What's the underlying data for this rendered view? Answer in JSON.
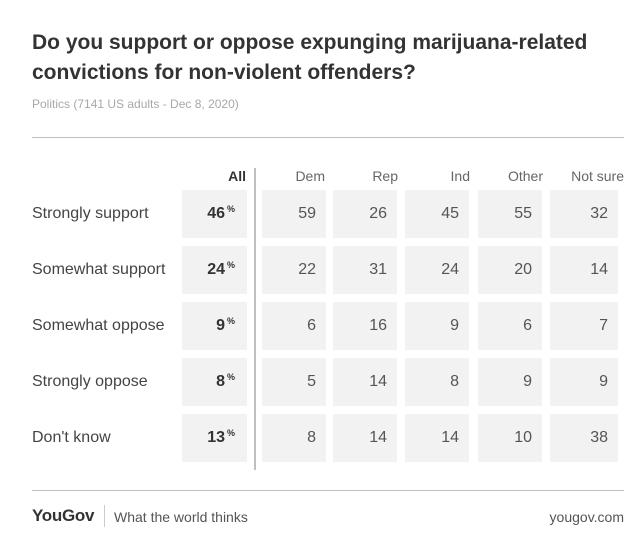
{
  "title": "Do you support or oppose expunging marijuana-related convictions for non-violent offenders?",
  "subtitle": "Politics (7141 US adults - Dec 8, 2020)",
  "footer": {
    "brand": "YouGov",
    "tagline": "What the world thinks",
    "url": "yougov.com"
  },
  "colors": {
    "cell_background": "#f2f2f2",
    "rule": "#bfbfbf",
    "text": "#333333"
  },
  "chart_data": {
    "type": "table",
    "title": "Do you support or oppose expunging marijuana-related convictions for non-violent offenders?",
    "subtitle": "Politics (7141 US adults - Dec 8, 2020)",
    "columns": [
      "All",
      "Dem",
      "Rep",
      "Ind",
      "Other",
      "Not sure"
    ],
    "rows": [
      {
        "label": "Strongly support",
        "values": [
          46,
          59,
          26,
          45,
          55,
          32
        ]
      },
      {
        "label": "Somewhat support",
        "values": [
          24,
          22,
          31,
          24,
          20,
          14
        ]
      },
      {
        "label": "Somewhat oppose",
        "values": [
          9,
          6,
          16,
          9,
          6,
          7
        ]
      },
      {
        "label": "Strongly oppose",
        "values": [
          8,
          5,
          14,
          8,
          9,
          9
        ]
      },
      {
        "label": "Don't know",
        "values": [
          13,
          8,
          14,
          14,
          10,
          38
        ]
      }
    ],
    "unit_all": "%"
  }
}
